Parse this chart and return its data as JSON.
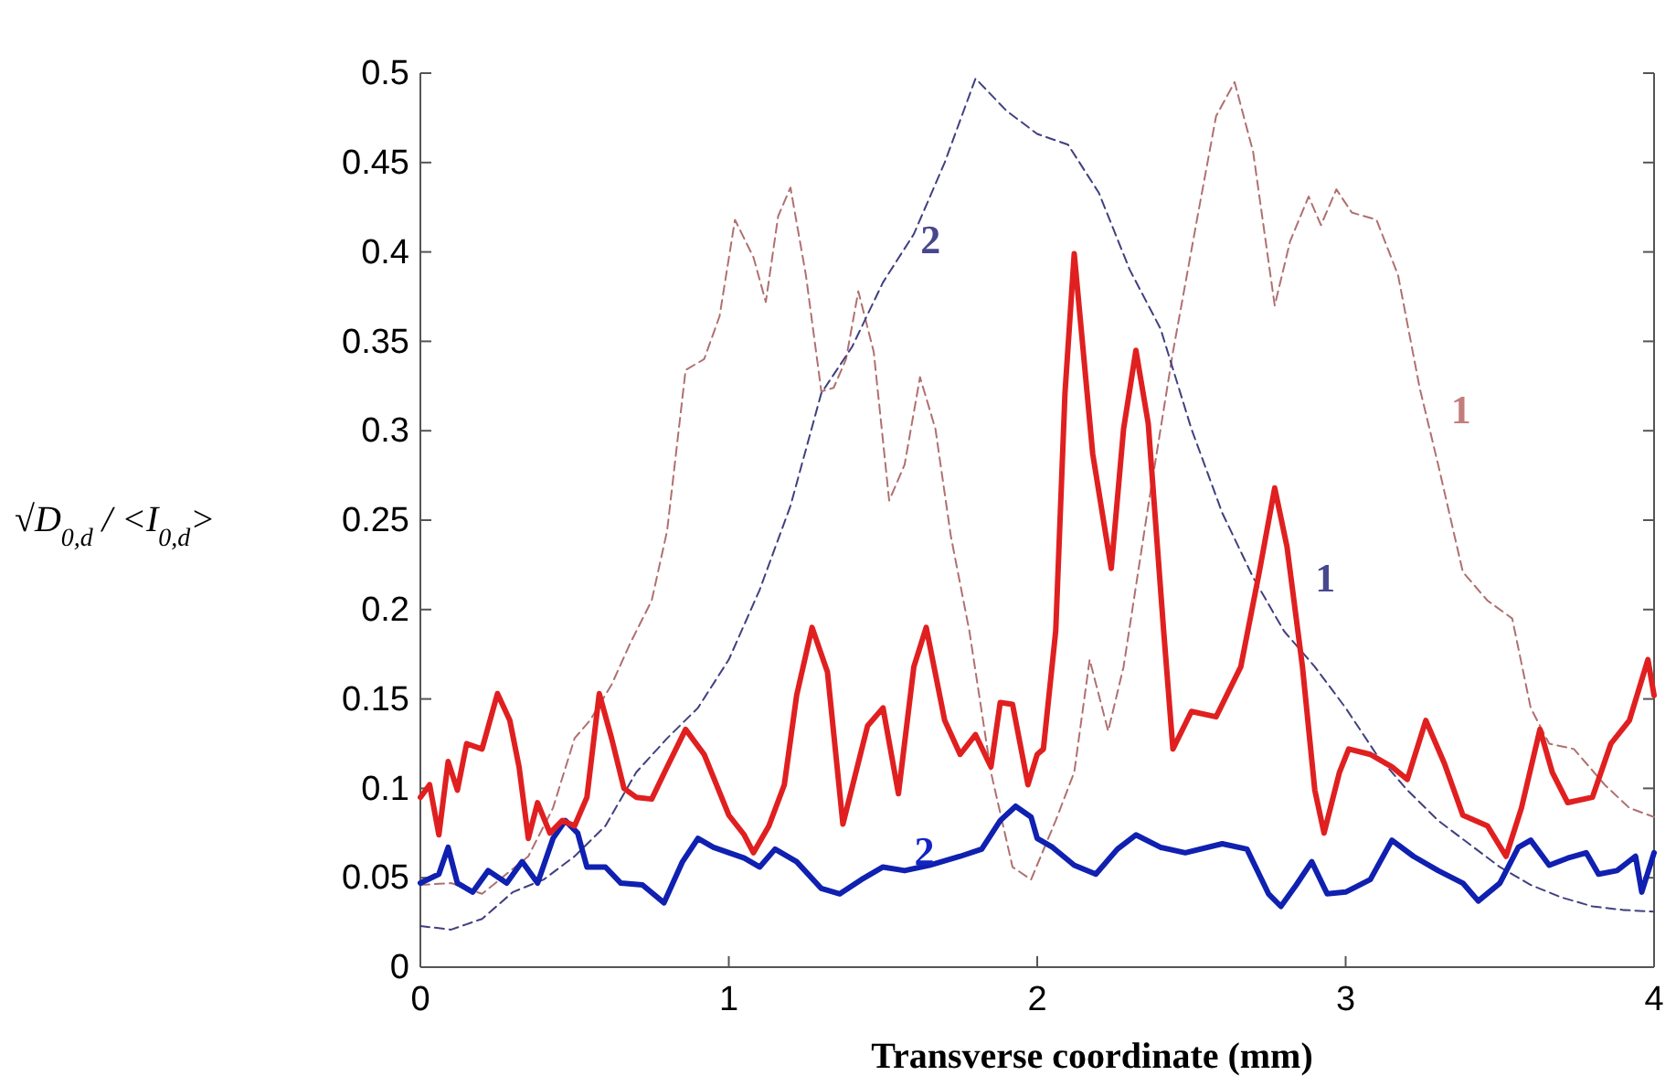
{
  "chart_data": {
    "type": "line",
    "xlabel": "Transverse coordinate (mm)",
    "ylabel": "√D$_{0,d}$ / <I$_{0,d}$>",
    "xlim": [
      0,
      4
    ],
    "xticks": [
      0,
      1,
      2,
      3,
      4
    ],
    "ylim": [
      0,
      0.5
    ],
    "yticks": [
      0,
      0.05,
      0.1,
      0.15,
      0.2,
      0.25,
      0.3,
      0.35,
      0.4,
      0.45,
      0.5
    ],
    "grid": false,
    "series": [
      {
        "color": "#b07070",
        "line_style": "dashed",
        "x": [
          0,
          0.1,
          0.2,
          0.35,
          0.43,
          0.5,
          0.55,
          0.62,
          0.68,
          0.75,
          0.8,
          0.86,
          0.92,
          0.97,
          1.02,
          1.08,
          1.12,
          1.16,
          1.2,
          1.25,
          1.3,
          1.34,
          1.38,
          1.42,
          1.47,
          1.52,
          1.57,
          1.62,
          1.67,
          1.72,
          1.78,
          1.85,
          1.92,
          1.98,
          2.06,
          2.12,
          2.17,
          2.23,
          2.28,
          2.36,
          2.44,
          2.52,
          2.58,
          2.64,
          2.7,
          2.77,
          2.82,
          2.88,
          2.92,
          2.97,
          3.02,
          3.1,
          3.17,
          3.24,
          3.3,
          3.38,
          3.46,
          3.54,
          3.6,
          3.66,
          3.74,
          3.84,
          3.92,
          4.0
        ],
        "values": [
          0.046,
          0.047,
          0.041,
          0.062,
          0.089,
          0.128,
          0.138,
          0.158,
          0.181,
          0.205,
          0.244,
          0.334,
          0.34,
          0.364,
          0.418,
          0.397,
          0.372,
          0.42,
          0.436,
          0.387,
          0.322,
          0.324,
          0.34,
          0.378,
          0.344,
          0.261,
          0.281,
          0.33,
          0.301,
          0.241,
          0.188,
          0.109,
          0.056,
          0.049,
          0.082,
          0.109,
          0.172,
          0.132,
          0.168,
          0.258,
          0.344,
          0.42,
          0.476,
          0.495,
          0.456,
          0.37,
          0.406,
          0.431,
          0.415,
          0.435,
          0.422,
          0.418,
          0.387,
          0.324,
          0.281,
          0.221,
          0.205,
          0.195,
          0.145,
          0.125,
          0.122,
          0.102,
          0.089,
          0.084
        ]
      },
      {
        "color": "#404080",
        "line_style": "dashed",
        "x": [
          0,
          0.1,
          0.2,
          0.3,
          0.4,
          0.5,
          0.6,
          0.7,
          0.8,
          0.9,
          1.0,
          1.1,
          1.2,
          1.3,
          1.4,
          1.5,
          1.6,
          1.7,
          1.8,
          1.9,
          2.0,
          2.1,
          2.2,
          2.3,
          2.4,
          2.5,
          2.6,
          2.7,
          2.8,
          2.9,
          3.0,
          3.1,
          3.2,
          3.3,
          3.4,
          3.5,
          3.6,
          3.7,
          3.8,
          3.9,
          4.0
        ],
        "values": [
          0.023,
          0.021,
          0.027,
          0.042,
          0.049,
          0.062,
          0.079,
          0.109,
          0.128,
          0.145,
          0.172,
          0.211,
          0.258,
          0.321,
          0.347,
          0.383,
          0.41,
          0.45,
          0.497,
          0.479,
          0.466,
          0.46,
          0.433,
          0.39,
          0.357,
          0.301,
          0.254,
          0.218,
          0.188,
          0.168,
          0.145,
          0.119,
          0.099,
          0.082,
          0.069,
          0.056,
          0.046,
          0.039,
          0.034,
          0.032,
          0.031
        ]
      },
      {
        "color": "#1020b0",
        "line_style": "solid",
        "x": [
          0,
          0.06,
          0.09,
          0.12,
          0.17,
          0.22,
          0.28,
          0.33,
          0.38,
          0.43,
          0.47,
          0.51,
          0.54,
          0.6,
          0.65,
          0.72,
          0.79,
          0.85,
          0.9,
          0.95,
          1.05,
          1.1,
          1.15,
          1.22,
          1.3,
          1.36,
          1.43,
          1.5,
          1.57,
          1.65,
          1.75,
          1.82,
          1.88,
          1.93,
          1.98,
          2.0,
          2.05,
          2.12,
          2.19,
          2.26,
          2.32,
          2.4,
          2.48,
          2.6,
          2.68,
          2.75,
          2.79,
          2.84,
          2.89,
          2.94,
          3.0,
          3.08,
          3.15,
          3.22,
          3.3,
          3.38,
          3.43,
          3.5,
          3.56,
          3.6,
          3.66,
          3.72,
          3.78,
          3.82,
          3.88,
          3.94,
          3.96,
          4.0
        ],
        "values": [
          0.047,
          0.052,
          0.067,
          0.047,
          0.042,
          0.054,
          0.047,
          0.059,
          0.047,
          0.072,
          0.082,
          0.075,
          0.056,
          0.056,
          0.047,
          0.046,
          0.036,
          0.059,
          0.072,
          0.067,
          0.061,
          0.056,
          0.066,
          0.059,
          0.044,
          0.041,
          0.049,
          0.056,
          0.054,
          0.057,
          0.062,
          0.066,
          0.082,
          0.09,
          0.084,
          0.072,
          0.067,
          0.057,
          0.052,
          0.066,
          0.074,
          0.067,
          0.064,
          0.069,
          0.066,
          0.041,
          0.034,
          0.046,
          0.059,
          0.041,
          0.042,
          0.049,
          0.071,
          0.062,
          0.054,
          0.047,
          0.037,
          0.047,
          0.067,
          0.071,
          0.057,
          0.061,
          0.064,
          0.052,
          0.054,
          0.062,
          0.042,
          0.064
        ]
      },
      {
        "color": "#e02020",
        "line_style": "solid",
        "x": [
          0,
          0.03,
          0.06,
          0.09,
          0.12,
          0.15,
          0.2,
          0.25,
          0.29,
          0.32,
          0.35,
          0.38,
          0.42,
          0.46,
          0.5,
          0.54,
          0.58,
          0.62,
          0.66,
          0.7,
          0.75,
          0.8,
          0.86,
          0.92,
          1.0,
          1.05,
          1.08,
          1.13,
          1.18,
          1.22,
          1.27,
          1.32,
          1.37,
          1.45,
          1.5,
          1.55,
          1.6,
          1.64,
          1.7,
          1.75,
          1.8,
          1.85,
          1.88,
          1.92,
          1.97,
          2.0,
          2.02,
          2.06,
          2.09,
          2.12,
          2.18,
          2.24,
          2.28,
          2.32,
          2.36,
          2.41,
          2.44,
          2.5,
          2.58,
          2.66,
          2.72,
          2.77,
          2.81,
          2.86,
          2.9,
          2.93,
          2.98,
          3.01,
          3.08,
          3.15,
          3.2,
          3.26,
          3.32,
          3.38,
          3.46,
          3.52,
          3.57,
          3.63,
          3.67,
          3.72,
          3.8,
          3.86,
          3.92,
          3.98,
          4.0
        ],
        "values": [
          0.095,
          0.102,
          0.074,
          0.115,
          0.099,
          0.125,
          0.122,
          0.153,
          0.138,
          0.112,
          0.072,
          0.092,
          0.075,
          0.082,
          0.079,
          0.095,
          0.153,
          0.128,
          0.1,
          0.095,
          0.094,
          0.112,
          0.133,
          0.119,
          0.085,
          0.074,
          0.064,
          0.079,
          0.102,
          0.152,
          0.19,
          0.165,
          0.08,
          0.135,
          0.145,
          0.097,
          0.168,
          0.19,
          0.138,
          0.119,
          0.13,
          0.112,
          0.148,
          0.147,
          0.102,
          0.119,
          0.122,
          0.188,
          0.321,
          0.399,
          0.287,
          0.223,
          0.301,
          0.345,
          0.304,
          0.188,
          0.122,
          0.143,
          0.14,
          0.168,
          0.221,
          0.268,
          0.235,
          0.168,
          0.099,
          0.075,
          0.109,
          0.122,
          0.119,
          0.112,
          0.105,
          0.138,
          0.114,
          0.085,
          0.079,
          0.062,
          0.089,
          0.133,
          0.109,
          0.092,
          0.095,
          0.125,
          0.138,
          0.172,
          0.152
        ]
      }
    ],
    "annotations": [
      {
        "text": "2",
        "x": 1.55,
        "y": 0.397
      },
      {
        "text": "1",
        "x": 3.27,
        "y": 0.302
      },
      {
        "text": "1",
        "x": 2.83,
        "y": 0.208
      },
      {
        "text": "2",
        "x": 1.53,
        "y": 0.055
      }
    ]
  }
}
